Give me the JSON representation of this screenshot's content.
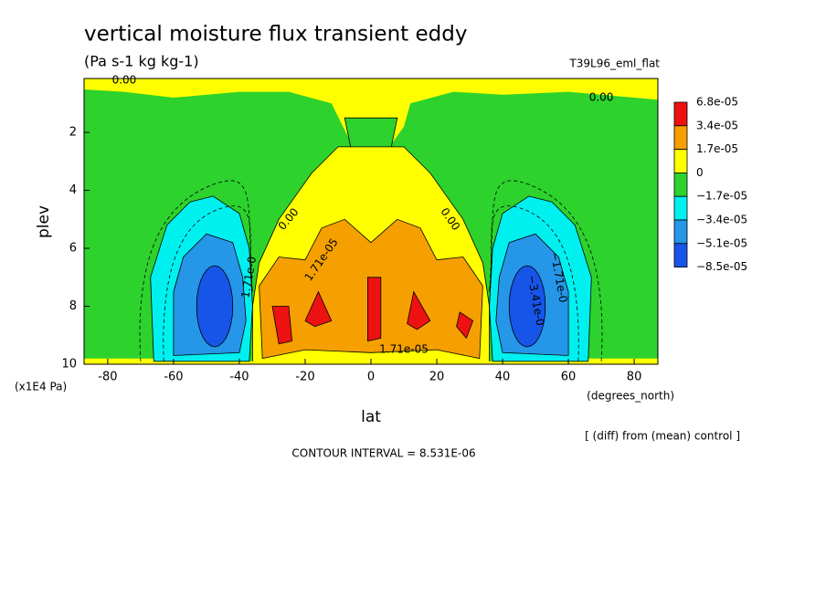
{
  "chart_data": {
    "type": "contour",
    "title": "vertical moisture flux transient eddy",
    "subtitle": "(Pa s-1 kg kg-1)",
    "run_label": "T39L96_eml_flat",
    "x_label": "lat",
    "y_label": "plev",
    "x_unit": "(degrees_north)",
    "y_unit": "(x1E4 Pa)",
    "note": "[ (diff) from (mean) control ]",
    "contour_interval": "CONTOUR INTERVAL = 8.531E-06",
    "xlim": [
      -87.2,
      87.2
    ],
    "ylim": [
      10,
      0.14
    ],
    "xticks": [
      -80,
      -60,
      -40,
      -20,
      0,
      20,
      40,
      60,
      80
    ],
    "yticks": [
      2,
      4,
      6,
      8,
      10
    ],
    "levels": [
      {
        "value": 6.8e-05,
        "label": "6.8e-05"
      },
      {
        "value": 3.4e-05,
        "label": "3.4e-05"
      },
      {
        "value": 1.7e-05,
        "label": "1.7e-05"
      },
      0,
      {
        "value": -1.7e-05,
        "label": "−1.7e-05"
      },
      {
        "value": -3.4e-05,
        "label": "−3.4e-05"
      },
      {
        "value": -5.1e-05,
        "label": "−5.1e-05"
      },
      {
        "value": -8.5e-05,
        "label": "−8.5e-05"
      }
    ],
    "colors": [
      "#ee1111",
      "#f5a000",
      "#ffff00",
      "#2dd22d",
      "#00f0f0",
      "#2596e8",
      "#1655e8"
    ],
    "contour_labels": [
      "0.00",
      "0.00",
      "0.00",
      "0.00",
      "1.71e-05",
      "1.71e-05",
      "1.71e-0",
      "−1.71e-0",
      "−3.41e-0"
    ]
  }
}
